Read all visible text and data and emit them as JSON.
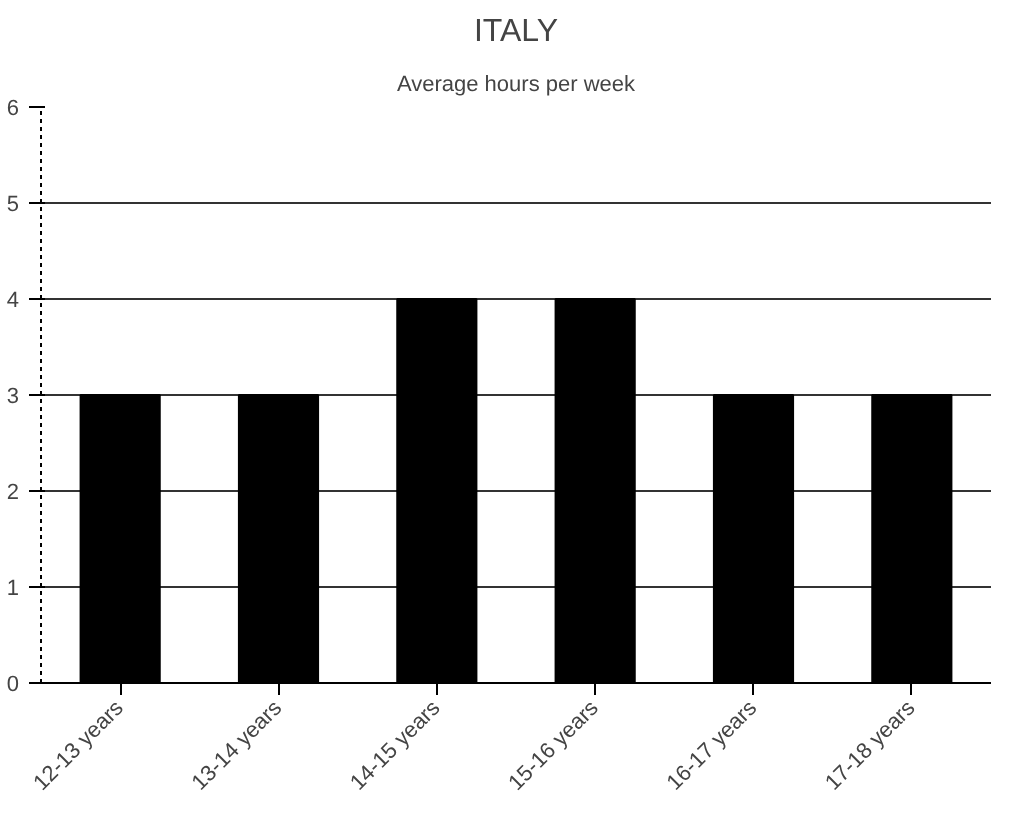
{
  "chart_data": {
    "type": "bar",
    "title": "ITALY",
    "subtitle": "Average hours per week",
    "categories": [
      "12-13 years",
      "13-14 years",
      "14-15 years",
      "15-16 years",
      "16-17 years",
      "17-18 years"
    ],
    "values": [
      3,
      3,
      4,
      4,
      3,
      3
    ],
    "color": "#000000",
    "ylim": [
      0,
      6
    ],
    "yticks": [
      0,
      1,
      2,
      3,
      4,
      5,
      6
    ],
    "grid": "y"
  }
}
